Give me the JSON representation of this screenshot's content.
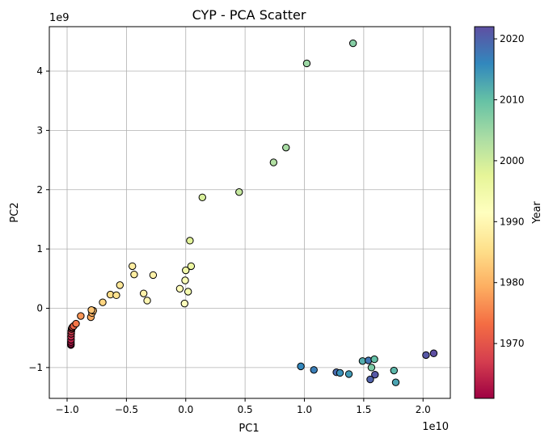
{
  "chart_data": {
    "type": "scatter",
    "title": "CYP - PCA Scatter",
    "xlabel": "PC1",
    "ylabel": "PC2",
    "x_multiplier": "1e10",
    "y_multiplier": "1e9",
    "xlim": [
      -1.15,
      2.23
    ],
    "ylim": [
      -1.52,
      4.75
    ],
    "x_ticks": [
      -1.0,
      -0.5,
      0.0,
      0.5,
      1.0,
      1.5,
      2.0
    ],
    "x_tick_labels": [
      "−1.0",
      "−0.5",
      "0.0",
      "0.5",
      "1.0",
      "1.5",
      "2.0"
    ],
    "y_ticks": [
      -1,
      0,
      1,
      2,
      3,
      4
    ],
    "y_tick_labels": [
      "−1",
      "0",
      "1",
      "2",
      "3",
      "4"
    ],
    "grid": true,
    "colorbar": {
      "label": "Year",
      "range": [
        1961,
        2022
      ],
      "ticks": [
        1970,
        1980,
        1990,
        2000,
        2010,
        2020
      ],
      "tick_labels": [
        "1970",
        "1980",
        "1990",
        "2000",
        "2010",
        "2020"
      ],
      "colormap": "Spectral"
    },
    "points": [
      {
        "x": -0.968,
        "y": -0.62,
        "year": 1961
      },
      {
        "x": -0.968,
        "y": -0.6,
        "year": 1962
      },
      {
        "x": -0.968,
        "y": -0.57,
        "year": 1963
      },
      {
        "x": -0.967,
        "y": -0.53,
        "year": 1964
      },
      {
        "x": -0.967,
        "y": -0.48,
        "year": 1965
      },
      {
        "x": -0.966,
        "y": -0.43,
        "year": 1966
      },
      {
        "x": -0.965,
        "y": -0.39,
        "year": 1967
      },
      {
        "x": -0.962,
        "y": -0.35,
        "year": 1968
      },
      {
        "x": -0.958,
        "y": -0.33,
        "year": 1969
      },
      {
        "x": -0.955,
        "y": -0.32,
        "year": 1970
      },
      {
        "x": -0.945,
        "y": -0.3,
        "year": 1972
      },
      {
        "x": -0.925,
        "y": -0.26,
        "year": 1974
      },
      {
        "x": -0.885,
        "y": -0.13,
        "year": 1977
      },
      {
        "x": -0.8,
        "y": -0.15,
        "year": 1979
      },
      {
        "x": -0.79,
        "y": -0.08,
        "year": 1980
      },
      {
        "x": -0.78,
        "y": -0.04,
        "year": 1981
      },
      {
        "x": -0.795,
        "y": -0.03,
        "year": 1982
      },
      {
        "x": -0.7,
        "y": 0.1,
        "year": 1984
      },
      {
        "x": -0.635,
        "y": 0.23,
        "year": 1985
      },
      {
        "x": -0.585,
        "y": 0.22,
        "year": 1986
      },
      {
        "x": -0.555,
        "y": 0.39,
        "year": 1987
      },
      {
        "x": -0.45,
        "y": 0.71,
        "year": 1988
      },
      {
        "x": -0.435,
        "y": 0.57,
        "year": 1988
      },
      {
        "x": -0.355,
        "y": 0.25,
        "year": 1989
      },
      {
        "x": -0.275,
        "y": 0.56,
        "year": 1989
      },
      {
        "x": -0.325,
        "y": 0.13,
        "year": 1990
      },
      {
        "x": -0.05,
        "y": 0.33,
        "year": 1991
      },
      {
        "x": -0.01,
        "y": 0.08,
        "year": 1992
      },
      {
        "x": -0.005,
        "y": 0.47,
        "year": 1993
      },
      {
        "x": 0.02,
        "y": 0.28,
        "year": 1994
      },
      {
        "x": 0.0,
        "y": 0.64,
        "year": 1995
      },
      {
        "x": 0.045,
        "y": 0.71,
        "year": 1996
      },
      {
        "x": 0.035,
        "y": 1.14,
        "year": 1998
      },
      {
        "x": 0.14,
        "y": 1.87,
        "year": 1999
      },
      {
        "x": 0.45,
        "y": 1.96,
        "year": 2001
      },
      {
        "x": 0.74,
        "y": 2.46,
        "year": 2003
      },
      {
        "x": 0.845,
        "y": 2.71,
        "year": 2004
      },
      {
        "x": 1.02,
        "y": 4.13,
        "year": 2005
      },
      {
        "x": 1.41,
        "y": 4.47,
        "year": 2007
      },
      {
        "x": 0.97,
        "y": -0.98,
        "year": 2016
      },
      {
        "x": 1.08,
        "y": -1.04,
        "year": 2017
      },
      {
        "x": 1.27,
        "y": -1.08,
        "year": 2019
      },
      {
        "x": 1.3,
        "y": -1.09,
        "year": 2015
      },
      {
        "x": 1.375,
        "y": -1.11,
        "year": 2014
      },
      {
        "x": 1.49,
        "y": -0.89,
        "year": 2012
      },
      {
        "x": 1.54,
        "y": -0.88,
        "year": 2018
      },
      {
        "x": 1.565,
        "y": -1.0,
        "year": 2008
      },
      {
        "x": 1.59,
        "y": -0.86,
        "year": 2010
      },
      {
        "x": 1.555,
        "y": -1.2,
        "year": 2020
      },
      {
        "x": 1.595,
        "y": -1.12,
        "year": 2021
      },
      {
        "x": 1.755,
        "y": -1.05,
        "year": 2011
      },
      {
        "x": 1.77,
        "y": -1.25,
        "year": 2013
      },
      {
        "x": 2.025,
        "y": -0.79,
        "year": 2021
      },
      {
        "x": 2.09,
        "y": -0.76,
        "year": 2022
      }
    ]
  }
}
